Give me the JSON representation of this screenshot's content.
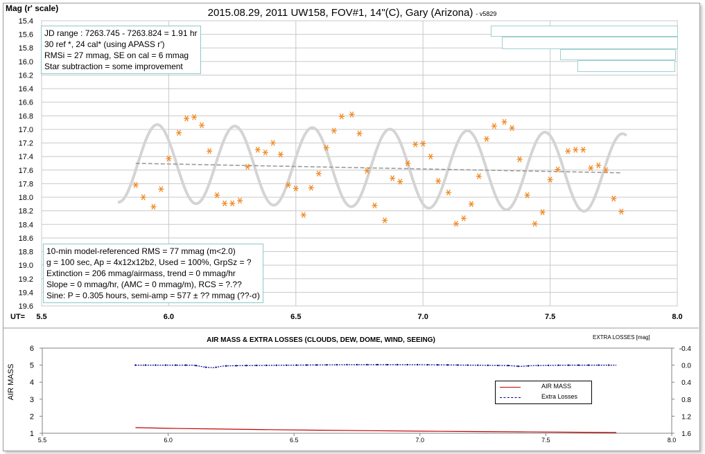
{
  "title": "2015.08.29, 2011 UW158, FOV#1, 14\"(C), Gary (Arizona)",
  "version": "- v5829",
  "top_chart": {
    "ylabel": "Mag (r' scale)",
    "xlabel": "UT=",
    "info_box_top": [
      "JD range : 7263.745 - 7263.824 = 1.91 hr",
      " 30 ref *, 24 cal* (using APASS r')",
      "RMSi = 27 mmag, SE on cal = 6 mmag",
      "Star subtraction = some improvement"
    ],
    "info_box_bottom": [
      "10-min model-referenced RMS = 77 mmag (m<2.0)",
      "g = 100 sec, Ap = 4x12x12b2, Used = 100%,  GrpSz = ?",
      "Extinction = 206 mmag/airmass, trend = 0 mmag/hr",
      "Slope = 0 mmag/hr, (AMC = 0 mmag/m), RCS = ?.??",
      "Sine: P = 0.305 hours, semi-amp = 577 ± ?? mmag (??-σ)"
    ]
  },
  "bottom_chart": {
    "title": "AIR MASS & EXTRA LOSSES (CLOUDS, DEW, DOME, WIND, SEEING)",
    "ylabel": "AIR MASS",
    "y2label": "EXTRA LOSSES [mag]",
    "legend": [
      {
        "label": "AIR MASS",
        "color": "#c00000"
      },
      {
        "label": "Extra Losses",
        "color": "#00008b"
      }
    ]
  },
  "colors": {
    "data_points": "#f08a24",
    "sine_model": "#d4d4d4",
    "trend": "#9a9a9a",
    "grid": "#c8c8c8",
    "air_mass": "#c00000",
    "extra_losses": "#00008b"
  },
  "chart_data": [
    {
      "type": "scatter",
      "title": "2015.08.29, 2011 UW158, FOV#1, 14\"(C), Gary (Arizona)",
      "ylabel": "Mag (r' scale)",
      "xlabel": "UT=",
      "xlim": [
        5.5,
        8.0
      ],
      "ylim": [
        15.4,
        19.6
      ],
      "y_inverted": true,
      "xticks": [
        "5.5",
        "6.0",
        "6.5",
        "7.0",
        "7.5",
        "8.0"
      ],
      "yticks": [
        "15.4",
        "15.6",
        "15.8",
        "16.0",
        "16.2",
        "16.4",
        "16.6",
        "16.8",
        "17.0",
        "17.2",
        "17.4",
        "17.6",
        "17.8",
        "18.0",
        "18.2",
        "18.4",
        "18.6",
        "18.8",
        "19.0",
        "19.2",
        "19.4",
        "19.6"
      ],
      "grid": true,
      "points": [
        [
          5.87,
          17.82
        ],
        [
          5.9,
          18.0
        ],
        [
          5.94,
          18.14
        ],
        [
          5.97,
          17.88
        ],
        [
          6.0,
          17.43
        ],
        [
          6.04,
          17.05
        ],
        [
          6.07,
          16.84
        ],
        [
          6.1,
          16.82
        ],
        [
          6.13,
          16.94
        ],
        [
          6.16,
          17.32
        ],
        [
          6.19,
          17.97
        ],
        [
          6.22,
          18.09
        ],
        [
          6.25,
          18.09
        ],
        [
          6.28,
          18.05
        ],
        [
          6.31,
          17.55
        ],
        [
          6.35,
          17.3
        ],
        [
          6.38,
          17.34
        ],
        [
          6.41,
          17.2
        ],
        [
          6.44,
          17.37
        ],
        [
          6.47,
          17.82
        ],
        [
          6.5,
          17.87
        ],
        [
          6.53,
          18.26
        ],
        [
          6.56,
          17.86
        ],
        [
          6.59,
          17.65
        ],
        [
          6.62,
          17.27
        ],
        [
          6.65,
          17.02
        ],
        [
          6.68,
          16.81
        ],
        [
          6.72,
          16.78
        ],
        [
          6.75,
          17.06
        ],
        [
          6.78,
          17.61
        ],
        [
          6.81,
          18.12
        ],
        [
          6.85,
          18.34
        ],
        [
          6.88,
          17.72
        ],
        [
          6.91,
          17.77
        ],
        [
          6.94,
          17.5
        ],
        [
          6.97,
          17.22
        ],
        [
          7.0,
          17.21
        ],
        [
          7.03,
          17.4
        ],
        [
          7.06,
          17.76
        ],
        [
          7.1,
          17.93
        ],
        [
          7.13,
          18.39
        ],
        [
          7.16,
          18.31
        ],
        [
          7.19,
          18.1
        ],
        [
          7.22,
          17.69
        ],
        [
          7.25,
          17.14
        ],
        [
          7.28,
          16.95
        ],
        [
          7.32,
          16.89
        ],
        [
          7.35,
          16.98
        ],
        [
          7.38,
          17.44
        ],
        [
          7.41,
          17.97
        ],
        [
          7.44,
          18.39
        ],
        [
          7.47,
          18.22
        ],
        [
          7.5,
          17.74
        ],
        [
          7.53,
          17.59
        ],
        [
          7.57,
          17.32
        ],
        [
          7.6,
          17.3
        ],
        [
          7.63,
          17.3
        ],
        [
          7.66,
          17.57
        ],
        [
          7.69,
          17.53
        ],
        [
          7.72,
          17.6
        ],
        [
          7.75,
          18.02
        ],
        [
          7.78,
          18.21
        ]
      ],
      "sine_model": {
        "period_hr": 0.305,
        "semi_amplitude_mag": 0.577,
        "x_range": [
          5.8,
          7.8
        ]
      },
      "trend_line": {
        "x": [
          5.87,
          7.78
        ],
        "y": [
          17.5,
          17.64
        ]
      }
    },
    {
      "type": "line",
      "title": "AIR MASS & EXTRA LOSSES (CLOUDS, DEW, DOME, WIND, SEEING)",
      "ylabel": "AIR MASS",
      "y2label": "EXTRA LOSSES [mag]",
      "xlim": [
        5.5,
        8.0
      ],
      "ylim": [
        1,
        6
      ],
      "y2lim": [
        1.6,
        -0.4
      ],
      "xticks": [
        "5.5",
        "6.0",
        "6.5",
        "7.0",
        "7.5",
        "8.0"
      ],
      "yticks": [
        "1",
        "2",
        "3",
        "4",
        "5",
        "6"
      ],
      "y2ticks": [
        "1.6",
        "1.2",
        "0.8",
        "0.4",
        "0.0",
        "-0.4"
      ],
      "legend_position": "right",
      "series": [
        {
          "name": "AIR MASS",
          "axis": "left",
          "x": [
            5.87,
            6.0,
            6.2,
            6.4,
            6.6,
            6.8,
            7.0,
            7.2,
            7.4,
            7.6,
            7.78
          ],
          "y": [
            1.33,
            1.29,
            1.25,
            1.21,
            1.18,
            1.15,
            1.12,
            1.1,
            1.08,
            1.06,
            1.04
          ]
        },
        {
          "name": "Extra Losses",
          "axis": "right",
          "x": [
            5.87,
            6.0,
            6.1,
            6.15,
            6.18,
            6.22,
            6.3,
            6.5,
            6.7,
            7.0,
            7.2,
            7.35,
            7.4,
            7.45,
            7.6,
            7.78
          ],
          "y": [
            0.0,
            0.0,
            0.0,
            0.05,
            0.06,
            0.02,
            0.01,
            0.0,
            -0.01,
            -0.01,
            0.0,
            0.01,
            0.03,
            0.01,
            0.0,
            0.0
          ]
        }
      ]
    }
  ]
}
